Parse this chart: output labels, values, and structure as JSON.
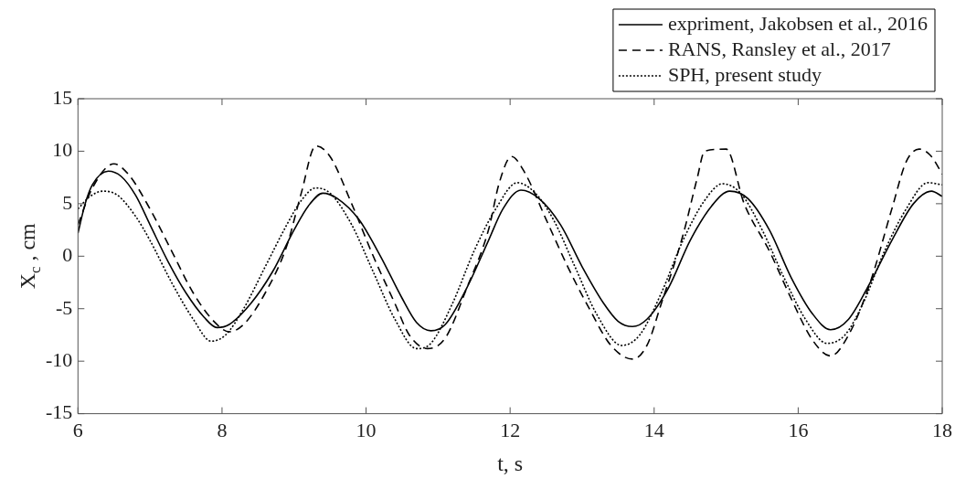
{
  "chart_data": {
    "type": "line",
    "xlabel": "t, s",
    "ylabel": "X$_{c}$ , cm",
    "xlim": [
      6,
      18
    ],
    "ylim": [
      -15,
      15
    ],
    "xticks": [
      6,
      8,
      10,
      12,
      14,
      16,
      18
    ],
    "yticks": [
      -15,
      -10,
      -5,
      0,
      5,
      10,
      15
    ],
    "grid": false,
    "legend": "top right",
    "marker": "none",
    "series": [
      {
        "name": "expriment, Jakobsen et al., 2016",
        "color": "#000000",
        "line_style": "solid",
        "x": [
          6.0,
          6.1,
          6.2,
          6.42,
          6.6,
          6.8,
          7.0,
          7.25,
          7.5,
          7.75,
          7.93,
          8.1,
          8.4,
          8.7,
          9.0,
          9.2,
          9.4,
          9.6,
          9.9,
          10.2,
          10.5,
          10.7,
          10.9,
          11.1,
          11.4,
          11.7,
          11.9,
          12.15,
          12.4,
          12.7,
          13.0,
          13.3,
          13.5,
          13.7,
          13.9,
          14.2,
          14.5,
          14.8,
          15.05,
          15.3,
          15.6,
          15.9,
          16.2,
          16.45,
          16.7,
          17.0,
          17.3,
          17.6,
          17.85,
          18.0
        ],
        "values": [
          2.2,
          5,
          6.8,
          8.1,
          7.6,
          5.8,
          3.0,
          -0.5,
          -3.5,
          -5.8,
          -6.8,
          -6.5,
          -4.5,
          -1.5,
          2.5,
          4.8,
          6.0,
          5.5,
          3.5,
          0,
          -4,
          -6.3,
          -7.1,
          -6.5,
          -3,
          1.5,
          4.5,
          6.3,
          5.5,
          3.0,
          -1.0,
          -4.5,
          -6.2,
          -6.7,
          -6,
          -3,
          1.5,
          4.8,
          6.2,
          5.5,
          2.5,
          -2.0,
          -5.5,
          -7.0,
          -6,
          -2.5,
          1.5,
          5.0,
          6.2,
          5.7
        ]
      },
      {
        "name": "RANS, Ransley et al., 2017",
        "color": "#000000",
        "line_style": "dashed",
        "x": [
          6.0,
          6.2,
          6.5,
          6.7,
          7.0,
          7.3,
          7.6,
          7.9,
          8.1,
          8.3,
          8.6,
          8.9,
          9.1,
          9.3,
          9.5,
          9.8,
          10.1,
          10.4,
          10.6,
          10.85,
          11.1,
          11.4,
          11.7,
          11.85,
          12.02,
          12.2,
          12.5,
          12.8,
          13.1,
          13.4,
          13.7,
          13.9,
          14.1,
          14.4,
          14.6,
          14.7,
          15.0,
          15.25,
          15.6,
          15.9,
          16.2,
          16.45,
          16.7,
          17.0,
          17.3,
          17.5,
          17.68,
          17.85,
          18.0
        ],
        "values": [
          3,
          6.5,
          8.8,
          7.8,
          4.5,
          0.5,
          -3.5,
          -6.3,
          -7.2,
          -6.5,
          -3.5,
          1,
          6,
          10.5,
          9.5,
          5,
          0,
          -4.5,
          -7.5,
          -8.8,
          -7.8,
          -3,
          2.5,
          7,
          9.5,
          8,
          3.5,
          -1,
          -5,
          -8.5,
          -9.8,
          -8.5,
          -4.5,
          2,
          7.5,
          10,
          10.2,
          5.0,
          0.5,
          -4.0,
          -8,
          -9.5,
          -7.5,
          -2.5,
          4.5,
          9,
          10.2,
          9.5,
          7.8
        ]
      },
      {
        "name": "SPH, present study",
        "color": "#000000",
        "line_style": "dotted",
        "x": [
          6.0,
          6.15,
          6.35,
          6.55,
          6.8,
          7.0,
          7.3,
          7.6,
          7.85,
          8.05,
          8.3,
          8.6,
          8.9,
          9.1,
          9.3,
          9.5,
          9.8,
          10.1,
          10.4,
          10.7,
          10.9,
          11.2,
          11.5,
          11.8,
          12.1,
          12.35,
          12.6,
          12.9,
          13.2,
          13.55,
          13.8,
          14.1,
          14.4,
          14.7,
          14.95,
          15.2,
          15.5,
          15.8,
          16.1,
          16.4,
          16.65,
          16.9,
          17.2,
          17.5,
          17.8,
          18.0
        ],
        "values": [
          4.5,
          5.6,
          6.2,
          5.8,
          3.8,
          1.5,
          -2.5,
          -6.0,
          -8.1,
          -7.5,
          -5,
          -1,
          3,
          5.3,
          6.5,
          6,
          3,
          -1.5,
          -6,
          -8.8,
          -8.3,
          -4.5,
          0.5,
          4.5,
          7.0,
          6,
          3.5,
          -1,
          -5.5,
          -8.5,
          -7.5,
          -3.5,
          1.5,
          5.3,
          6.9,
          6,
          2.5,
          -2.0,
          -6,
          -8.3,
          -7.5,
          -4.5,
          0.5,
          4.5,
          7.0,
          6.8
        ]
      }
    ]
  }
}
